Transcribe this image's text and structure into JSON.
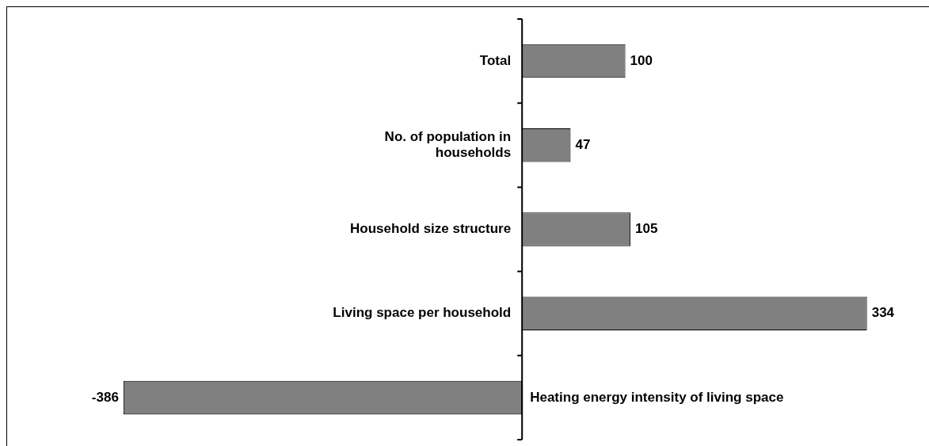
{
  "chart_data": {
    "type": "bar",
    "orientation": "horizontal",
    "categories": [
      "Total",
      "No. of population in households",
      "Household size structure",
      "Living space per household",
      "Heating energy intensity of living space"
    ],
    "values": [
      100,
      47,
      105,
      334,
      -386
    ],
    "color": "#808080",
    "data_labels": true,
    "legend": false
  }
}
